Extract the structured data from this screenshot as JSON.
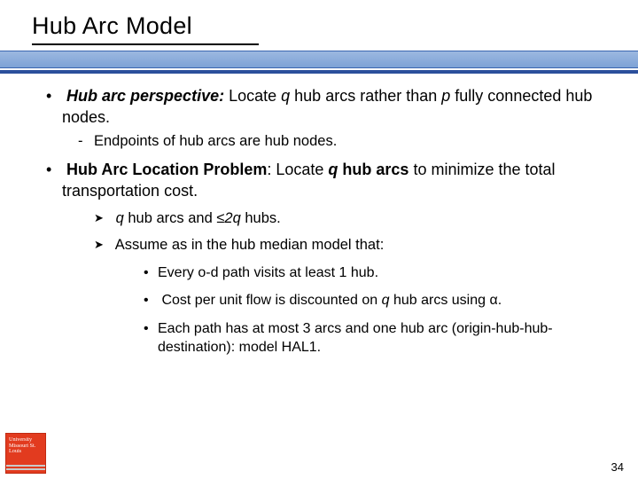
{
  "title": "Hub Arc Model",
  "p1": {
    "lead_b_i": "Hub arc perspective:",
    "l1": " Locate ",
    "q": "q",
    "l2": " hub arcs rather than ",
    "p": "p",
    "l3": " fully connected hub nodes."
  },
  "p1_sub": "Endpoints of hub arcs are hub nodes.",
  "p2": {
    "lead_b": "Hub Arc Location Problem",
    "l1": ": Locate ",
    "qb": "q",
    "l2": " hub arcs",
    "l3": " to minimize the total transportation cost."
  },
  "arrow1": {
    "q": "q",
    "mid": "  hub arcs and ",
    "leq2q": "≤2q",
    "tail": " hubs."
  },
  "arrow2": "Assume as in the hub median model that:",
  "d1": "Every o-d path visits at least 1 hub.",
  "d2": {
    "a": "Cost per unit flow is discounted on ",
    "q": "q",
    "b": " hub arcs using α."
  },
  "d3": "Each path has at most 3 arcs and one hub arc (origin-hub-hub-destination): model HAL1.",
  "page_number": "34",
  "logo_text": "University Missouri St. Louis",
  "colors": {
    "band_top": "#9cb8e0",
    "band_bottom": "#7da2d6",
    "band_border": "#3a66b0",
    "rule": "#2b4f9c",
    "logo_bg": "#e23b1f"
  }
}
